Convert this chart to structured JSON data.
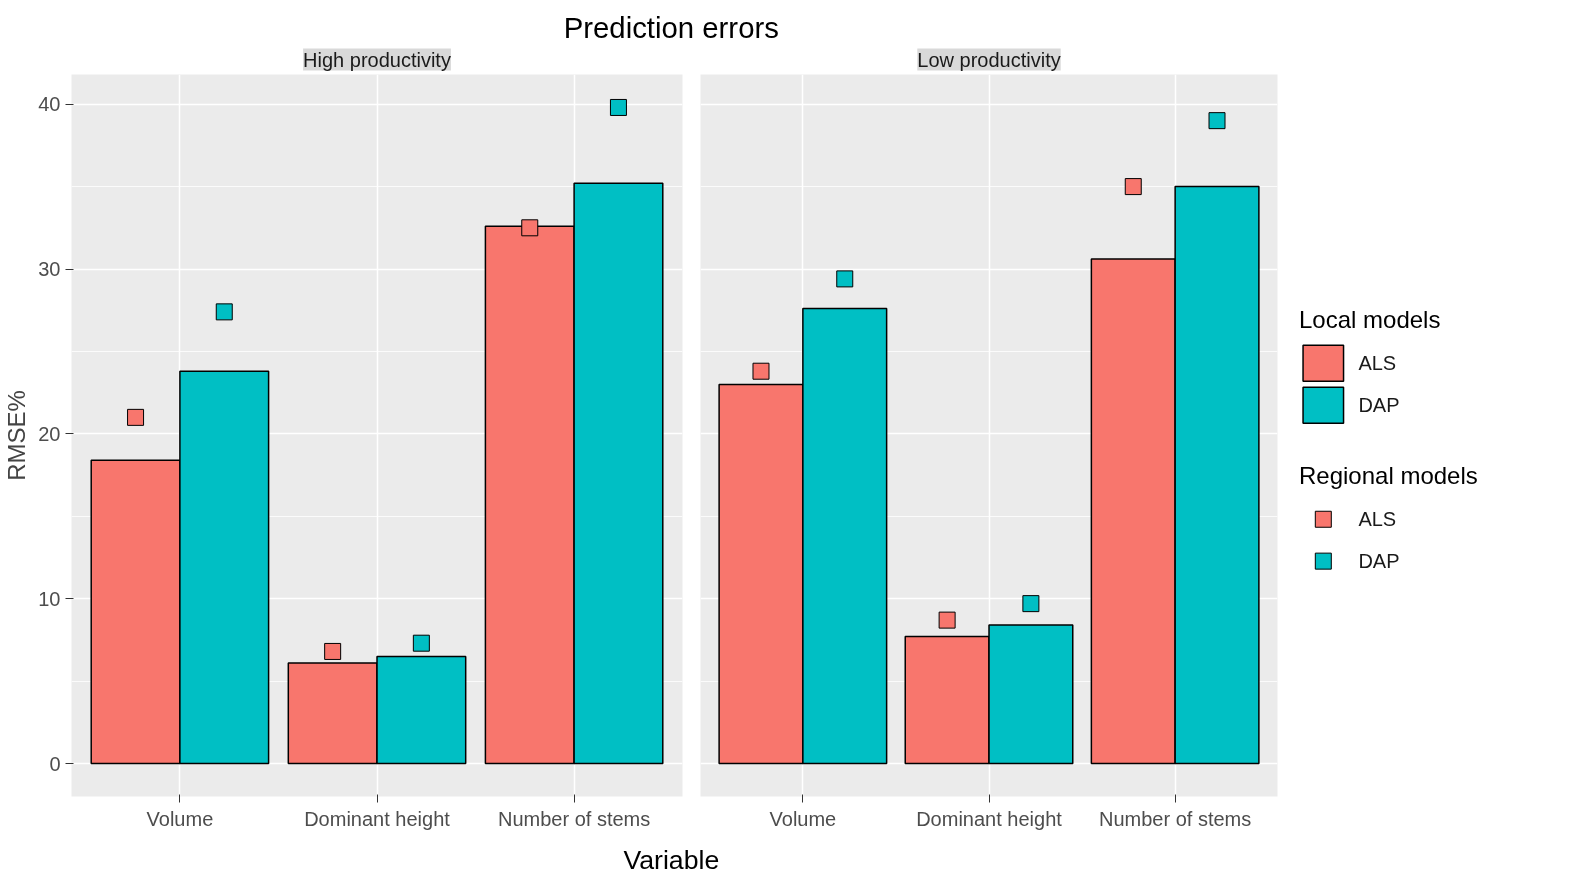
{
  "chart_data": [
    {
      "type": "bar",
      "title": "Prediction errors",
      "subtitle": "High productivity",
      "xlabel": "Variable",
      "ylabel": "RMSE%",
      "categories": [
        "Volume",
        "Dominant height",
        "Number of stems"
      ],
      "ylim": [
        -2,
        41.8
      ],
      "yticks": [
        0,
        10,
        20,
        30,
        40
      ],
      "grid": true,
      "marker": "square",
      "legend": "right",
      "legend_title": "Local models",
      "annotations": [
        "Regional models"
      ],
      "series": [
        {
          "name": "ALS",
          "color": "#f8766d",
          "values": [
            18.4,
            6.1,
            32.6
          ]
        },
        {
          "name": "DAP",
          "color": "#00bfc4",
          "values": [
            23.8,
            6.5,
            35.2
          ]
        },
        {
          "type": "scatter",
          "name": "ALS",
          "color": "#f8766d",
          "x": [
            "Volume",
            "Dominant height",
            "Number of stems"
          ],
          "values": [
            21.0,
            6.8,
            32.5
          ]
        },
        {
          "type": "scatter",
          "name": "DAP",
          "color": "#00bfc4",
          "x": [
            "Volume",
            "Dominant height",
            "Number of stems"
          ],
          "values": [
            27.4,
            7.3,
            39.8
          ]
        }
      ]
    },
    {
      "type": "bar",
      "subtitle": "Low productivity",
      "categories": [
        "Volume",
        "Dominant height",
        "Number of stems"
      ],
      "ylim": [
        -2,
        41.8
      ],
      "yticks": [
        0,
        10,
        20,
        30,
        40
      ],
      "grid": true,
      "tick_labels": "x",
      "marker": "square",
      "series": [
        {
          "color": "#f8766d",
          "values": [
            23.0,
            7.7,
            30.6
          ]
        },
        {
          "color": "#00bfc4",
          "values": [
            27.6,
            8.4,
            35.0
          ]
        },
        {
          "type": "scatter",
          "color": "#f8766d",
          "x": [
            "Volume",
            "Dominant height",
            "Number of stems"
          ],
          "values": [
            23.8,
            8.7,
            35.0
          ]
        },
        {
          "type": "scatter",
          "color": "#00bfc4",
          "x": [
            "Volume",
            "Dominant height",
            "Number of stems"
          ],
          "values": [
            29.4,
            9.7,
            39.0
          ]
        }
      ]
    }
  ]
}
